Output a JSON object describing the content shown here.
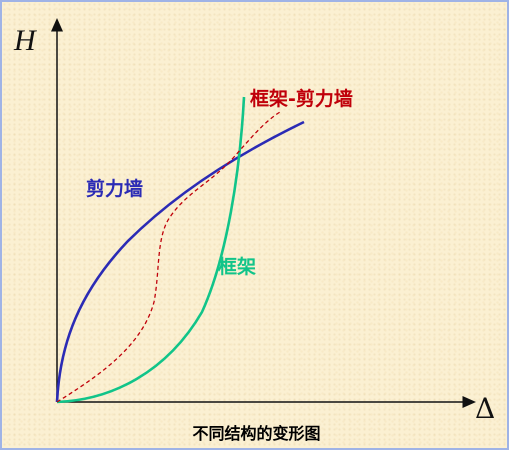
{
  "axes": {
    "y_label": "H",
    "x_label": "Δ"
  },
  "curves": {
    "shear_wall": {
      "label": "剪力墙",
      "color": "#2b2bb5"
    },
    "frame": {
      "label": "框架",
      "color": "#11c489"
    },
    "frame_shear_wall": {
      "label": "框架-剪力墙",
      "color": "#c0000a"
    }
  },
  "caption": "不同结构的变形图"
}
